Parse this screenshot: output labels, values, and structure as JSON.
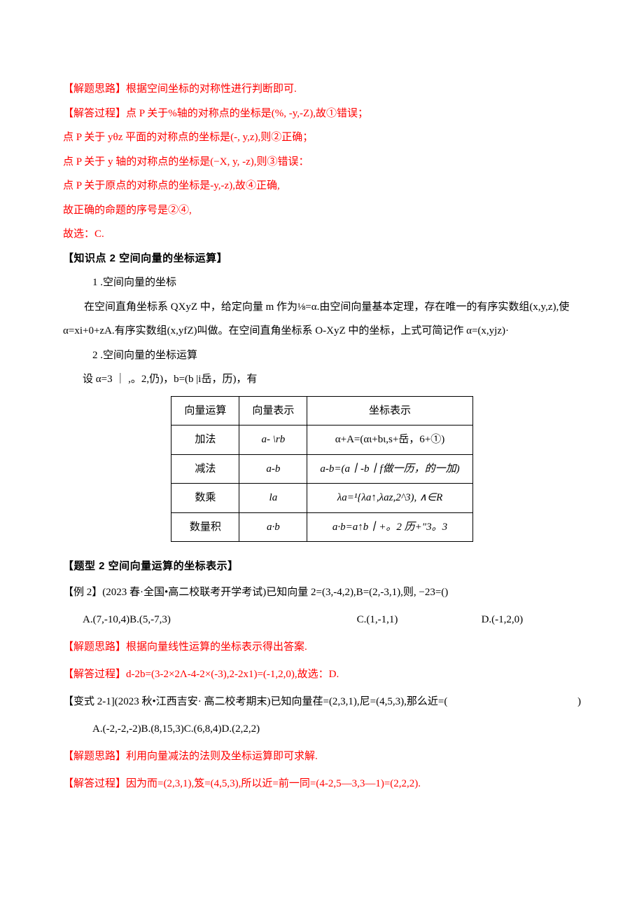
{
  "sol1": {
    "idea_label": "【解题思路】",
    "idea": "根据空间坐标的对称性进行判断即可.",
    "proc_label": "【解答过程】",
    "line1": "点 P 关于%轴的对称点的坐标是(%, -y,-Z),故①错误；",
    "line2": "点 P 关于 yθz 平面的对称点的坐标是(-,   y,z),则②正确；",
    "line3": "点 P 关于 y 轴的对称点的坐标是(−X,   y,   -z),则③错误：",
    "line4": "点 P 关于原点的对称点的坐标是-y,-z),故④正确,",
    "line5": "故正确的命题的序号是②④,",
    "line6": "故选：C."
  },
  "kp2": {
    "title": "【知识点 2 空间向量的坐标运算】",
    "s1_num": "1 .空间向量的坐标",
    "s1_body": "在空间直角坐标系 QXyZ 中，给定向量 m 作为⅛=α.由空间向量基本定理，存在唯一的有序实数组(x,y,z),使α=xi+0+zA.有序实数组(x,yfZ)叫做。在空间直角坐标系 O-XyZ 中的坐标，上式可简记作 α=(x,yjz)·",
    "s2_num": "2 .空间向量的坐标运算",
    "s2_set": "设 α=3 ｜ ,。2,仍)，b=(b |i岳，历)，有",
    "table": {
      "head": [
        "向量运算",
        "向量表示",
        "坐标表示"
      ],
      "rows": [
        [
          "加法",
          "a- \\rb",
          "α+A=(αι+bι,s+岳，6+①)"
        ],
        [
          "减法",
          "a-b",
          "a-b=(a丨-b丨f做一历，的一加)"
        ],
        [
          "数乘",
          "la",
          "λa=¹{λa↑,λaz,2^3), ∧∈R"
        ],
        [
          "数量积",
          "a·b",
          "a·b=a↑b丨+。2 历+\"3。3"
        ]
      ]
    }
  },
  "qt2": {
    "title": "【题型 2 空间向量运算的坐标表示】",
    "ex": "【例 2】(2023 春·全国•高二校联考开学考试)已知向量 2=(3,-4,2),B=(2,-3,1),则, −23=()",
    "opts": {
      "ab": "A.(7,-10,4)B.(5,-7,3)",
      "c": "C.(1,-1,1)",
      "d": "D.(-1,2,0)"
    },
    "sol": {
      "idea_label": "【解题思路】",
      "idea": "根据向量线性运算的坐标表示得出答案.",
      "proc_label": "【解答过程】",
      "proc": "d-2b=(3-2×2Λ-4-2×(-3),2-2x1)=(-1,2,0),故选：D."
    }
  },
  "var21": {
    "title": "【变式 2-1](2023 秋•江西吉安· 高二校考期末)已知向量荏=(2,3,1),尼=(4,5,3),那么近=(",
    "paren": ")",
    "opts": "A.(-2,-2,-2)B.(8,15,3)C.(6,8,4)D.(2,2,2)",
    "sol": {
      "idea_label": "【解题思路】",
      "idea": "利用向量减法的法则及坐标运算即可求解.",
      "proc_label": "【解答过程】",
      "proc": "因为而=(2,3,1),笈=(4,5,3),所以近=前一同=(4-2,5—3,3—1)=(2,2,2)."
    }
  }
}
